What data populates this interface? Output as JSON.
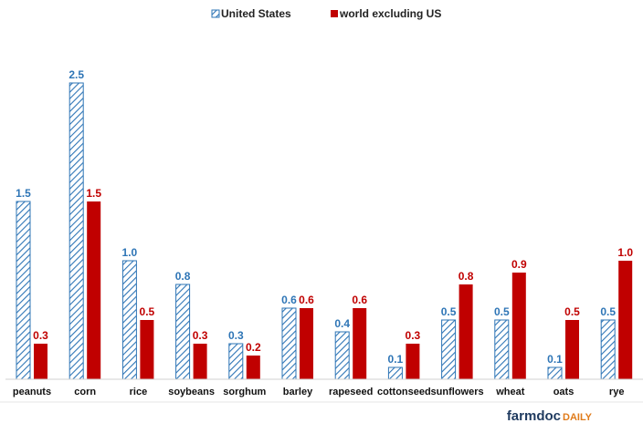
{
  "chart_data": {
    "type": "bar",
    "title": "",
    "xlabel": "",
    "ylabel": "",
    "ylim": [
      0,
      2.6
    ],
    "grid": false,
    "legend_position": "top-center",
    "categories": [
      "peanuts",
      "corn",
      "rice",
      "soybeans",
      "sorghum",
      "barley",
      "rapeseed",
      "cottonseed",
      "sunflowers",
      "wheat",
      "oats",
      "rye"
    ],
    "series": [
      {
        "name": "United States",
        "color": "#2e75b6",
        "pattern": "diagonal-hatch",
        "values": [
          1.5,
          2.5,
          1.0,
          0.8,
          0.3,
          0.6,
          0.4,
          0.1,
          0.5,
          0.5,
          0.1,
          0.5
        ],
        "labels": [
          "1.5",
          "2.5",
          "1.0",
          "0.8",
          "0.3",
          "0.6",
          "0.4",
          "0.1",
          "0.5",
          "0.5",
          "0.1",
          "0.5"
        ]
      },
      {
        "name": "world excluding US",
        "color": "#c00000",
        "pattern": "solid",
        "values": [
          0.3,
          1.5,
          0.5,
          0.3,
          0.2,
          0.6,
          0.6,
          0.3,
          0.8,
          0.9,
          0.5,
          1.0
        ],
        "labels": [
          "0.3",
          "1.5",
          "0.5",
          "0.3",
          "0.2",
          "0.6",
          "0.6",
          "0.3",
          "0.8",
          "0.9",
          "0.5",
          "1.0"
        ]
      }
    ]
  },
  "brand": {
    "main": "farmdoc",
    "accent": "DAILY"
  }
}
